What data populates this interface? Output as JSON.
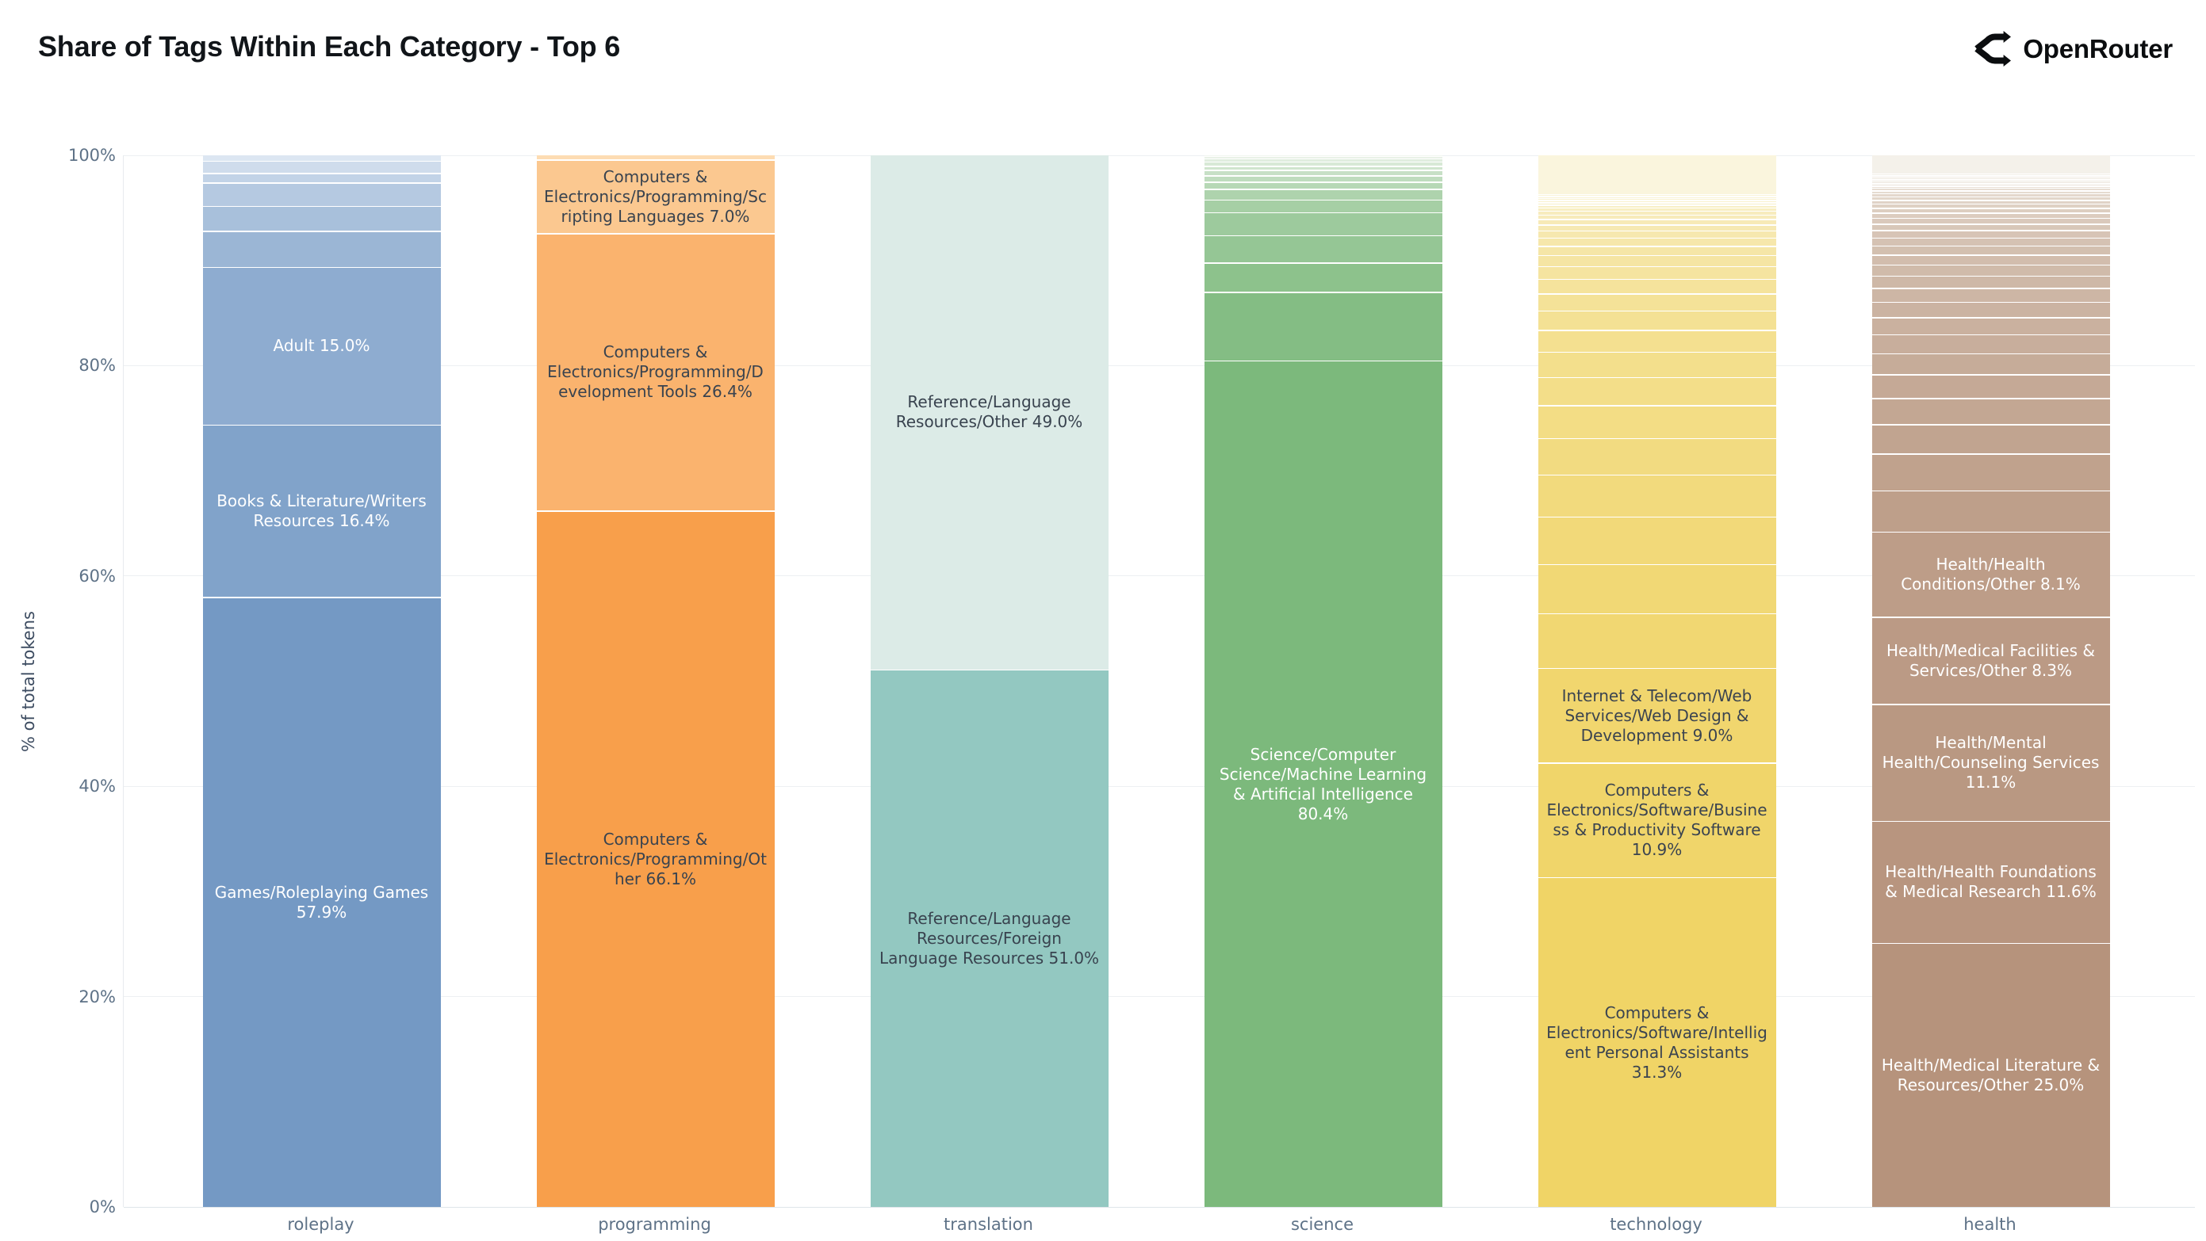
{
  "header": {
    "title": "Share of Tags Within Each Category - Top 6",
    "brand": "OpenRouter"
  },
  "chart_data": {
    "type": "bar",
    "stacked": true,
    "normalized": "percent",
    "title": "Share of Tags Within Each Category - Top 6",
    "xlabel": "",
    "ylabel": "% of total tokens",
    "ylim": [
      0,
      100
    ],
    "yticks": [
      0,
      20,
      40,
      60,
      80,
      100
    ],
    "grid": "horizontal",
    "legend": "none",
    "categories": [
      "roleplay",
      "programming",
      "translation",
      "science",
      "technology",
      "health"
    ],
    "bars": [
      {
        "category": "roleplay",
        "color_dark": "#7499c4",
        "color_light": "#dce6f2",
        "label_color": "#ffffff",
        "segments": [
          {
            "tag": "Games/Roleplaying Games",
            "value": 57.9,
            "labeled": true
          },
          {
            "tag": "Books & Literature/Writers Resources",
            "value": 16.4,
            "labeled": true
          },
          {
            "tag": "Adult",
            "value": 15.0,
            "labeled": true
          },
          {
            "value": 3.4
          },
          {
            "value": 2.4
          },
          {
            "value": 2.2
          },
          {
            "value": 0.9
          },
          {
            "value": 1.2
          },
          {
            "value": 0.6
          }
        ]
      },
      {
        "category": "programming",
        "color_dark": "#f89f4b",
        "color_light": "#fddcb3",
        "label_color": "#39434f",
        "segments": [
          {
            "tag": "Computers & Electronics/Programming/Other",
            "value": 66.1,
            "labeled": true
          },
          {
            "tag": "Computers & Electronics/Programming/Development Tools",
            "value": 26.4,
            "labeled": true
          },
          {
            "tag": "Computers & Electronics/Programming/Scripting Languages",
            "value": 7.0,
            "labeled": true
          },
          {
            "value": 0.5
          }
        ]
      },
      {
        "category": "translation",
        "color_dark": "#93c8c1",
        "color_light": "#dcebe7",
        "label_color": "#39434f",
        "segments": [
          {
            "tag": "Reference/Language Resources/Foreign Language Resources",
            "value": 51.0,
            "labeled": true
          },
          {
            "tag": "Reference/Language Resources/Other",
            "value": 49.0,
            "labeled": true
          }
        ]
      },
      {
        "category": "science",
        "color_dark": "#7cb97c",
        "color_light": "#f1f6ef",
        "label_color": "#ffffff",
        "segments": [
          {
            "tag": "Science/Computer Science/Machine Learning & Artificial Intelligence",
            "value": 80.4,
            "labeled": true
          },
          {
            "value": 6.5
          },
          {
            "value": 2.8
          },
          {
            "value": 2.6
          },
          {
            "value": 2.2
          },
          {
            "value": 1.2
          },
          {
            "value": 1.0
          },
          {
            "value": 0.7
          },
          {
            "value": 0.6
          },
          {
            "value": 0.5
          },
          {
            "value": 0.4
          },
          {
            "value": 0.4
          },
          {
            "value": 0.3
          },
          {
            "value": 0.25
          },
          {
            "value": 0.15
          }
        ]
      },
      {
        "category": "technology",
        "color_dark": "#f0d466",
        "color_light": "#faf5dd",
        "label_color": "#3b4450",
        "segments": [
          {
            "tag": "Computers & Electronics/Software/Intelligent Personal Assistants",
            "value": 31.3,
            "labeled": true
          },
          {
            "tag": "Computers & Electronics/Software/Business & Productivity Software",
            "value": 10.9,
            "labeled": true
          },
          {
            "tag": "Internet & Telecom/Web Services/Web Design & Development",
            "value": 9.0,
            "labeled": true
          },
          {
            "value": 5.2
          },
          {
            "value": 4.7
          },
          {
            "value": 4.5
          },
          {
            "value": 4.0
          },
          {
            "value": 3.5
          },
          {
            "value": 3.1
          },
          {
            "value": 2.7
          },
          {
            "value": 2.4
          },
          {
            "value": 2.1
          },
          {
            "value": 1.85
          },
          {
            "value": 1.6
          },
          {
            "value": 1.4
          },
          {
            "value": 1.2
          },
          {
            "value": 1.05
          },
          {
            "value": 0.9
          },
          {
            "value": 0.78
          },
          {
            "value": 0.68
          },
          {
            "value": 0.58
          },
          {
            "value": 0.5
          },
          {
            "value": 0.43
          },
          {
            "value": 0.37
          },
          {
            "value": 0.31
          },
          {
            "value": 0.27
          },
          {
            "value": 0.23
          },
          {
            "value": 0.2
          },
          {
            "value": 0.17
          },
          {
            "value": 0.15
          },
          {
            "value": 0.13
          },
          {
            "value": 3.9
          }
        ]
      },
      {
        "category": "health",
        "color_dark": "#b6937c",
        "color_light": "#f4f1ea",
        "label_color": "#ffffff",
        "segments": [
          {
            "tag": "Health/Medical Literature & Resources/Other",
            "value": 25.0,
            "labeled": true
          },
          {
            "tag": "Health/Health Foundations & Medical Research",
            "value": 11.6,
            "labeled": true
          },
          {
            "tag": "Health/Mental Health/Counseling Services",
            "value": 11.1,
            "labeled": true
          },
          {
            "tag": "Health/Medical Facilities & Services/Other",
            "value": 8.3,
            "labeled": true
          },
          {
            "tag": "Health/Health Conditions/Other",
            "value": 8.1,
            "labeled": true
          },
          {
            "value": 3.9
          },
          {
            "value": 3.5
          },
          {
            "value": 2.8
          },
          {
            "value": 2.5
          },
          {
            "value": 2.25
          },
          {
            "value": 2.0
          },
          {
            "value": 1.8
          },
          {
            "value": 1.62
          },
          {
            "value": 1.46
          },
          {
            "value": 1.31
          },
          {
            "value": 1.18
          },
          {
            "value": 1.06
          },
          {
            "value": 0.95
          },
          {
            "value": 0.86
          },
          {
            "value": 0.77
          },
          {
            "value": 0.69
          },
          {
            "value": 0.62
          },
          {
            "value": 0.56
          },
          {
            "value": 0.5
          },
          {
            "value": 0.45
          },
          {
            "value": 0.4
          },
          {
            "value": 0.36
          },
          {
            "value": 0.33
          },
          {
            "value": 0.3
          },
          {
            "value": 0.27
          },
          {
            "value": 0.24
          },
          {
            "value": 0.22
          },
          {
            "value": 0.2
          },
          {
            "value": 0.18
          },
          {
            "value": 0.16
          },
          {
            "value": 0.15
          },
          {
            "value": 0.14
          },
          {
            "value": 0.13
          },
          {
            "value": 2.0
          }
        ]
      }
    ]
  }
}
